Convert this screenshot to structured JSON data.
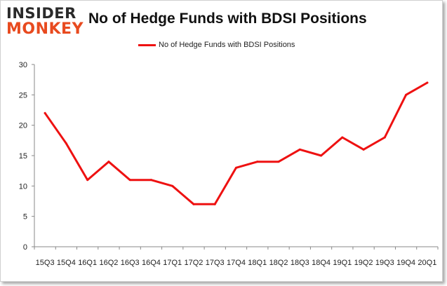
{
  "brand": {
    "line1": "INSIDER",
    "line2": "MONKEY"
  },
  "chart_data": {
    "type": "line",
    "title": "No of Hedge Funds with BDSI Positions",
    "xlabel": "",
    "ylabel": "",
    "categories": [
      "15Q3",
      "15Q4",
      "16Q1",
      "16Q2",
      "16Q3",
      "16Q4",
      "17Q1",
      "17Q2",
      "17Q3",
      "17Q4",
      "18Q1",
      "18Q2",
      "18Q3",
      "18Q4",
      "19Q1",
      "19Q2",
      "19Q3",
      "19Q4",
      "20Q1"
    ],
    "series": [
      {
        "name": "No of Hedge Funds with BDSI Positions",
        "color": "#ee1111",
        "values": [
          22,
          17,
          11,
          14,
          11,
          11,
          10,
          7,
          7,
          13,
          14,
          14,
          16,
          15,
          18,
          16,
          18,
          25,
          27
        ]
      }
    ],
    "ylim": [
      0,
      30
    ],
    "yticks": [
      0,
      5,
      10,
      15,
      20,
      25,
      30
    ],
    "grid": false,
    "legend_position": "top-center"
  }
}
